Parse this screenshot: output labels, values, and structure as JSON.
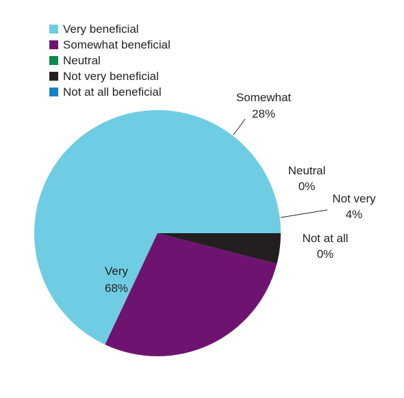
{
  "chart_data": {
    "type": "pie",
    "legend_position": "top-left",
    "title": "",
    "slices": [
      {
        "legend": "Very beneficial",
        "label": "Very",
        "value_label": "68%",
        "value": 68,
        "color": "#6ecde3"
      },
      {
        "legend": "Somewhat beneficial",
        "label": "Somewhat",
        "value_label": "28%",
        "value": 28,
        "color": "#6e1470"
      },
      {
        "legend": "Neutral",
        "label": "Neutral",
        "value_label": "0%",
        "value": 0,
        "color": "#0a8a4a"
      },
      {
        "legend": "Not very beneficial",
        "label": "Not very",
        "value_label": "4%",
        "value": 4,
        "color": "#231f20"
      },
      {
        "legend": "Not at all beneficial",
        "label": "Not at all",
        "value_label": "0%",
        "value": 0,
        "color": "#1680c4"
      }
    ]
  }
}
